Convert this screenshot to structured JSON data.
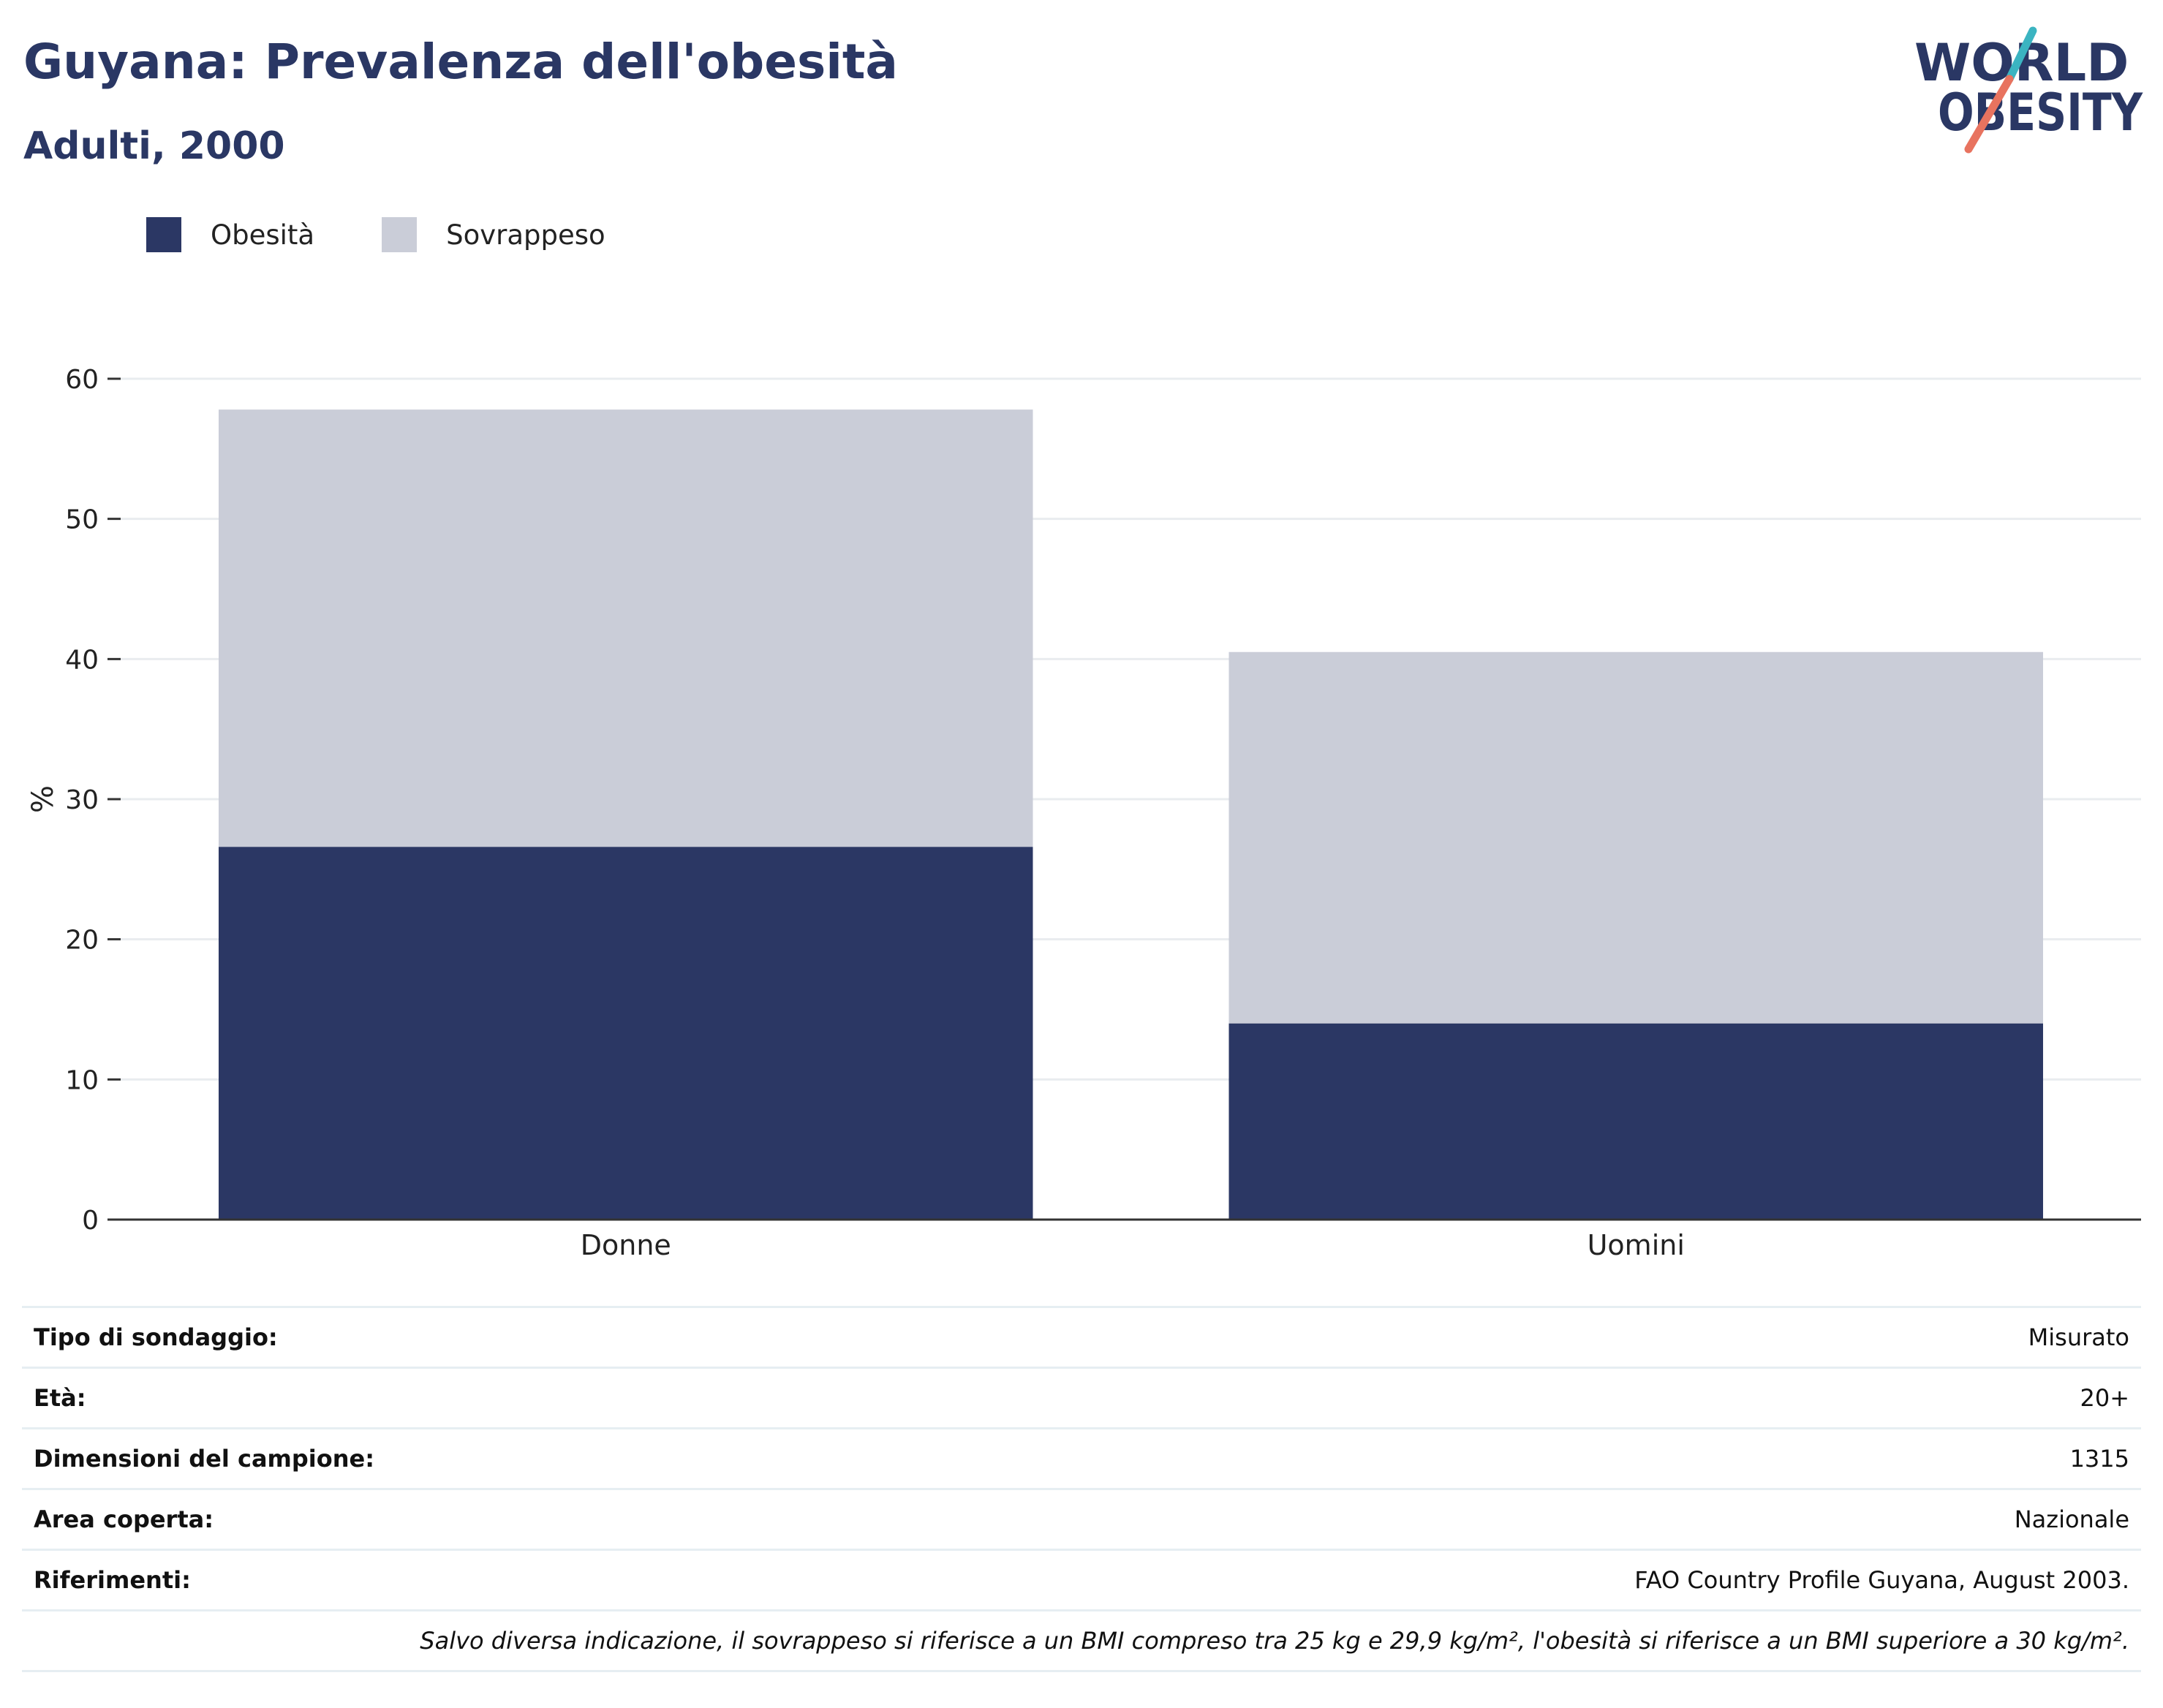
{
  "header": {
    "title": "Guyana: Prevalenza dell'obesità",
    "subtitle": "Adulti, 2000"
  },
  "logo": {
    "line1": "WORLD",
    "line2": "OBESITY",
    "colors": {
      "text": "#2a3764",
      "slash_teal": "#3bb4c1",
      "slash_coral": "#e8735f"
    }
  },
  "legend": {
    "items": [
      {
        "label": "Obesità",
        "color": "#2b3764"
      },
      {
        "label": "Sovrappeso",
        "color": "#cacdd8"
      }
    ]
  },
  "chart_data": {
    "type": "bar",
    "stacked": true,
    "categories": [
      "Donne",
      "Uomini"
    ],
    "series": [
      {
        "name": "Obesità",
        "values": [
          26.6,
          14.0
        ],
        "color": "#2b3764"
      },
      {
        "name": "Sovrappeso",
        "values": [
          31.2,
          26.5
        ],
        "color": "#cacdd8"
      }
    ],
    "ylabel": "%",
    "ylim": [
      0,
      60
    ],
    "yticks": [
      0,
      10,
      20,
      30,
      40,
      50,
      60
    ],
    "grid": true,
    "legend_position": "top-left"
  },
  "info": {
    "rows": [
      {
        "label": "Tipo di sondaggio:",
        "value": "Misurato"
      },
      {
        "label": "Età:",
        "value": "20+"
      },
      {
        "label": "Dimensioni del campione:",
        "value": "1315"
      },
      {
        "label": "Area coperta:",
        "value": "Nazionale"
      },
      {
        "label": "Riferimenti:",
        "value": "FAO Country Profile Guyana, August 2003."
      }
    ],
    "note": "Salvo diversa indicazione, il sovrappeso si riferisce a un BMI compreso tra 25 kg e 29,9 kg/m², l'obesità si riferisce a un BMI superiore a 30 kg/m²."
  }
}
